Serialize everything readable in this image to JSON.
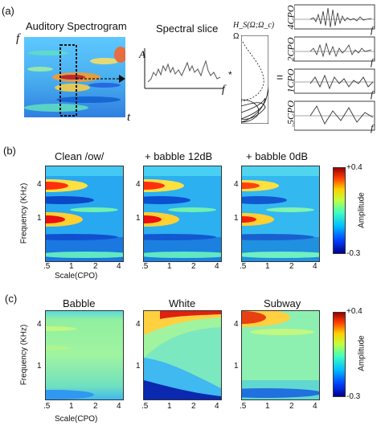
{
  "panel_a": {
    "label": "(a)",
    "spectrogram_title": "Auditory Spectrogram",
    "axis_f": "f",
    "axis_t": "t",
    "slice_title": "Spectral slice",
    "slice_y": "A",
    "slice_x": "f",
    "filter_title": "H_S(Ω;Ω_c)",
    "filter_omega": "Ω",
    "times": "*",
    "equals": "=",
    "cpo_labels": [
      "4CPO",
      "2CPO",
      "1CPO",
      ".5CPO"
    ],
    "cpo_f": "f"
  },
  "panel_b": {
    "label": "(b)",
    "titles": [
      "Clean /ow/",
      "+ babble 12dB",
      "+ babble 0dB"
    ],
    "ylabel": "Frequency (KHz)",
    "xlabel": "Scale(CPO)",
    "yticks": [
      "4",
      "1"
    ],
    "xticks": [
      ".5",
      "1",
      "2",
      "4"
    ],
    "colorbar": {
      "label": "Amplitude",
      "max": "+0.4",
      "min": "-0.3"
    }
  },
  "panel_c": {
    "label": "(c)",
    "titles": [
      "Babble",
      "White",
      "Subway"
    ],
    "ylabel": "Frequency (KHz)",
    "xlabel": "Scale(CPO)",
    "yticks": [
      "4",
      "1"
    ],
    "xticks": [
      ".5",
      "1",
      "2",
      "4"
    ],
    "colorbar": {
      "label": "Amplitude",
      "max": "+0.4",
      "min": "-0.3"
    }
  }
}
